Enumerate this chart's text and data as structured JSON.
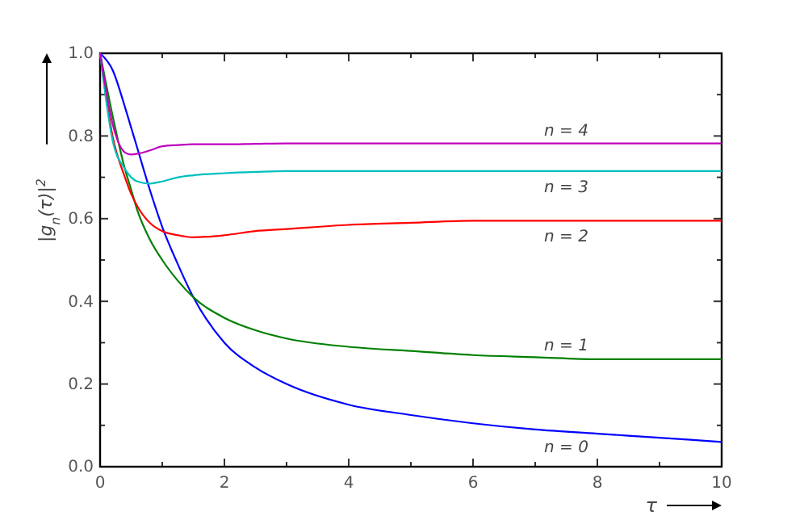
{
  "chart_data": {
    "type": "line",
    "xlabel": "τ",
    "ylabel": "|g$_{n}$(τ)|$^{2}$",
    "x": [
      0,
      0.2,
      0.4,
      0.5,
      0.6,
      0.8,
      1,
      1.25,
      1.5,
      2,
      2.5,
      3,
      4,
      5,
      6,
      7,
      8,
      9,
      10
    ],
    "series": [
      {
        "name": "n = 0",
        "color": "#0000ff",
        "values": [
          1,
          0.96,
          0.87,
          0.82,
          0.77,
          0.67,
          0.58,
          0.49,
          0.41,
          0.3,
          0.24,
          0.2,
          0.15,
          0.125,
          0.105,
          0.09,
          0.08,
          0.07,
          0.06
        ]
      },
      {
        "name": "n = 1",
        "color": "#008000",
        "values": [
          1,
          0.85,
          0.72,
          0.67,
          0.62,
          0.55,
          0.5,
          0.45,
          0.41,
          0.36,
          0.33,
          0.31,
          0.29,
          0.28,
          0.27,
          0.265,
          0.26,
          0.26,
          0.26
        ]
      },
      {
        "name": "n = 2",
        "color": "#ff0000",
        "values": [
          1,
          0.8,
          0.7,
          0.66,
          0.63,
          0.59,
          0.57,
          0.56,
          0.555,
          0.56,
          0.57,
          0.575,
          0.585,
          0.59,
          0.595,
          0.595,
          0.595,
          0.595,
          0.595
        ]
      },
      {
        "name": "n = 3",
        "color": "#00bfbf",
        "values": [
          1,
          0.79,
          0.72,
          0.7,
          0.69,
          0.685,
          0.69,
          0.7,
          0.705,
          0.71,
          0.713,
          0.715,
          0.715,
          0.715,
          0.715,
          0.715,
          0.715,
          0.715,
          0.715
        ]
      },
      {
        "name": "n = 4",
        "color": "#bf00bf",
        "values": [
          1,
          0.83,
          0.76,
          0.755,
          0.757,
          0.765,
          0.775,
          0.778,
          0.78,
          0.78,
          0.781,
          0.782,
          0.782,
          0.782,
          0.782,
          0.782,
          0.782,
          0.782,
          0.782
        ]
      }
    ],
    "xlim": [
      0,
      10
    ],
    "ylim": [
      0,
      1
    ],
    "xticks": [
      0,
      {
        "value": 1,
        "label": null
      },
      2,
      {
        "value": 3,
        "label": null
      },
      4,
      {
        "value": 5,
        "label": null
      },
      6,
      {
        "value": 7,
        "label": null
      },
      8,
      {
        "value": 9,
        "label": null
      },
      10
    ],
    "yticks": [
      {
        "value": 0,
        "label": "0.0"
      },
      {
        "value": 0.1,
        "label": null
      },
      {
        "value": 0.2,
        "label": "0.2"
      },
      {
        "value": 0.3,
        "label": null
      },
      {
        "value": 0.4,
        "label": "0.4"
      },
      {
        "value": 0.5,
        "label": null
      },
      {
        "value": 0.6,
        "label": "0.6"
      },
      {
        "value": 0.7,
        "label": null
      },
      {
        "value": 0.8,
        "label": "0.8"
      },
      {
        "value": 0.9,
        "label": null
      },
      {
        "value": 1,
        "label": "1.0"
      }
    ],
    "grid": false,
    "marker": "none",
    "line_style": "solid"
  }
}
